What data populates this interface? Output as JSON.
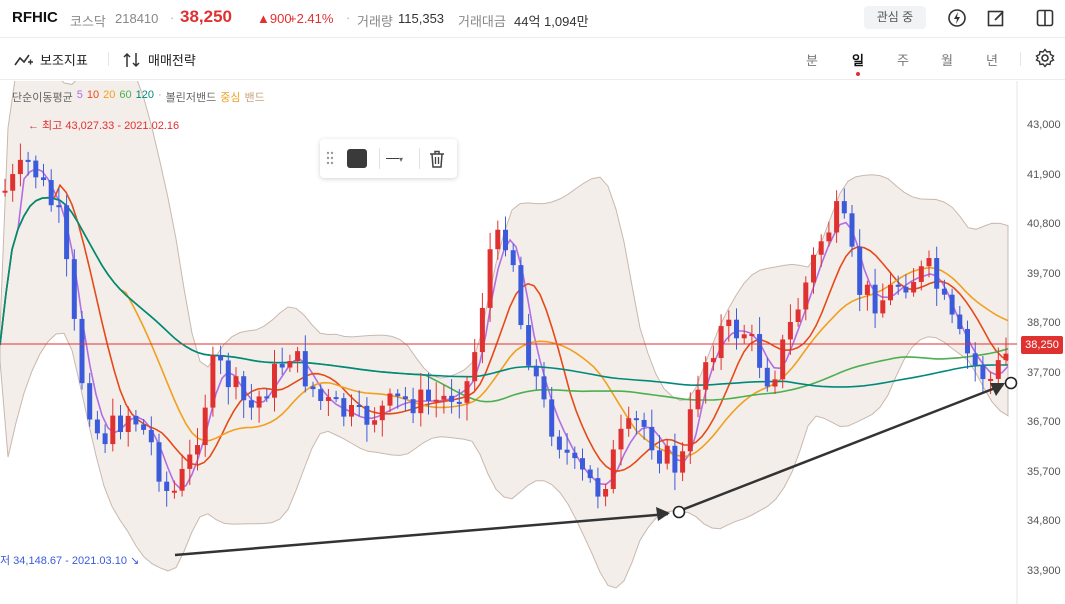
{
  "header": {
    "ticker": "RFHIC",
    "market": "코스닥",
    "code": "218410",
    "price": "38,250",
    "change": "▲900",
    "change_pct": "+2.41%",
    "volume_label": "거래량",
    "volume_value": "115,353",
    "amount_label": "거래대금",
    "amount_value": "44억 1,094만",
    "watch_label": "관심 중",
    "icons": [
      "lightning-icon",
      "edit-icon",
      "layout-icon"
    ]
  },
  "toolbar": {
    "indicators_label": "보조지표",
    "strategy_label": "매매전략",
    "periods": [
      "분",
      "일",
      "주",
      "월",
      "년"
    ],
    "active_period": "일",
    "settings_icon": "gear-icon"
  },
  "legend": {
    "sma_label": "단순이동평균",
    "sma_values": [
      "5",
      "10",
      "20",
      "60",
      "120"
    ],
    "sma_colors": [
      "#b26ee6",
      "#e64a19",
      "#f0a020",
      "#4caf50",
      "#00897b"
    ],
    "bb_label": "볼린저밴드",
    "bb_center": "중심",
    "bb_band": "밴드"
  },
  "annotations": {
    "high": "← 최고 43,027.33 - 2021.02.16",
    "low": "저 34,148.67 - 2021.03.10 ↘"
  },
  "colors": {
    "up": "#e03131",
    "down": "#3b5bdb",
    "band_fill": "#f3ede9",
    "band_line": "#c9b8ae"
  },
  "chart_data": {
    "type": "candlestick",
    "y_ticks": [
      "43,000",
      "41,900",
      "40,800",
      "39,700",
      "38,700",
      "37,700",
      "36,700",
      "35,700",
      "34,800",
      "33,900"
    ],
    "ylim": [
      33700,
      43400
    ],
    "current_price": "38,250",
    "current_value": 38250,
    "high_value": 43027.33,
    "low_value": 34148.67
  }
}
